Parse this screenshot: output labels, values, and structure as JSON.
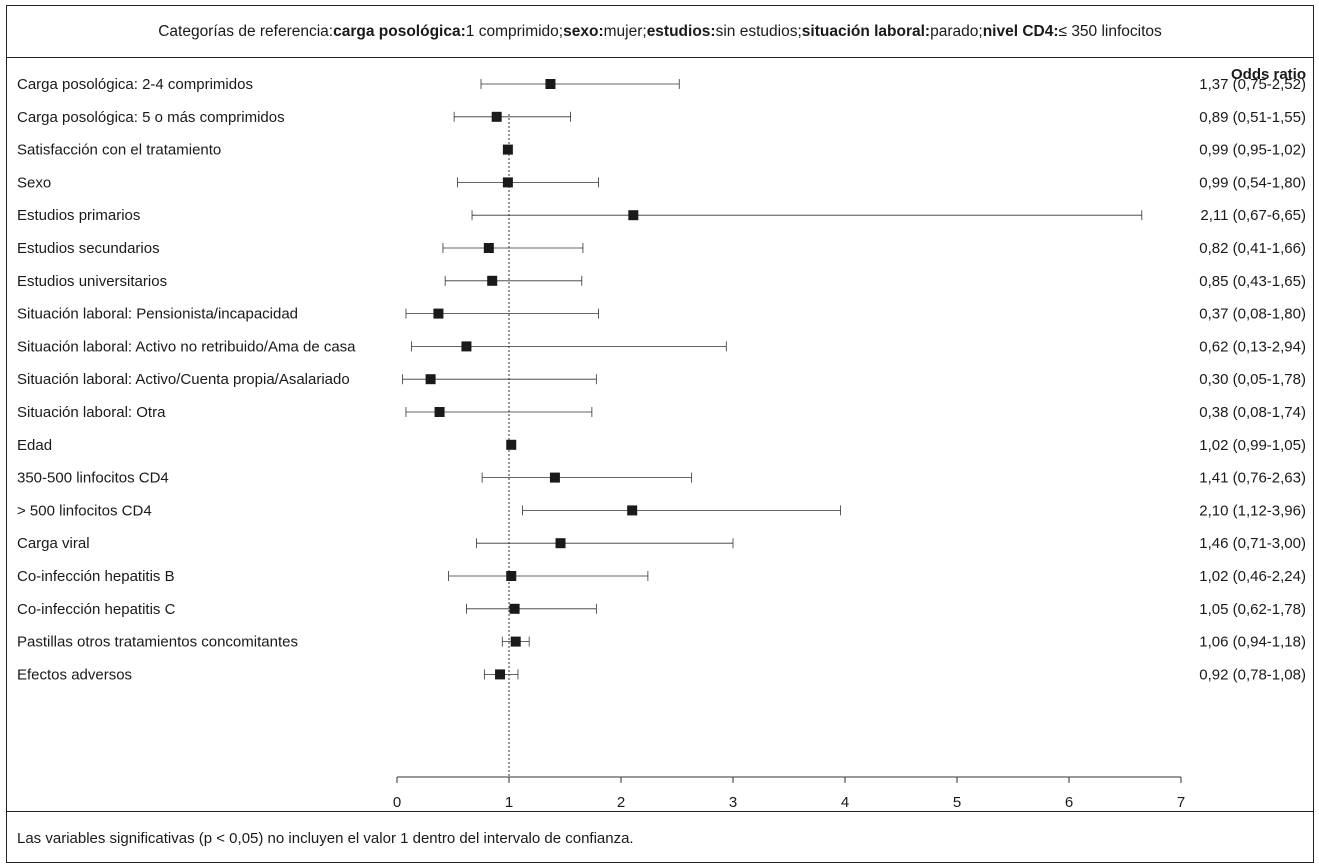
{
  "header": {
    "prefix": "Categorías de referencia:",
    "items": [
      {
        "key": "carga posológica:",
        "value": "1 comprimido;"
      },
      {
        "key": "sexo:",
        "value": "mujer;"
      },
      {
        "key": "estudios:",
        "value": "sin estudios;"
      },
      {
        "key": "situación laboral:",
        "value": "parado;"
      },
      {
        "key": "nivel CD4:",
        "value": "≤ 350 linfocitos"
      }
    ]
  },
  "footer": {
    "note": "Las variables significativas (p < 0,05) no incluyen el valor 1 dentro del intervalo de confianza."
  },
  "chart_data": {
    "type": "forest",
    "value_column_header": "Odds ratio",
    "reference_line": 1,
    "xlim": [
      0,
      7
    ],
    "xticks": [
      0,
      1,
      2,
      3,
      4,
      5,
      6,
      7
    ],
    "rows": [
      {
        "label": "Carga posológica: 2-4 comprimidos",
        "or": 1.37,
        "lo": 0.75,
        "hi": 2.52,
        "text": "1,37 (0,75-2,52)"
      },
      {
        "label": "Carga posológica: 5 o más comprimidos",
        "or": 0.89,
        "lo": 0.51,
        "hi": 1.55,
        "text": "0,89 (0,51-1,55)"
      },
      {
        "label": "Satisfacción con el tratamiento",
        "or": 0.99,
        "lo": 0.95,
        "hi": 1.02,
        "text": "0,99 (0,95-1,02)"
      },
      {
        "label": "Sexo",
        "or": 0.99,
        "lo": 0.54,
        "hi": 1.8,
        "text": "0,99 (0,54-1,80)"
      },
      {
        "label": "Estudios primarios",
        "or": 2.11,
        "lo": 0.67,
        "hi": 6.65,
        "text": "2,11 (0,67-6,65)"
      },
      {
        "label": "Estudios secundarios",
        "or": 0.82,
        "lo": 0.41,
        "hi": 1.66,
        "text": "0,82 (0,41-1,66)"
      },
      {
        "label": "Estudios universitarios",
        "or": 0.85,
        "lo": 0.43,
        "hi": 1.65,
        "text": "0,85 (0,43-1,65)"
      },
      {
        "label": "Situación laboral: Pensionista/incapacidad",
        "or": 0.37,
        "lo": 0.08,
        "hi": 1.8,
        "text": "0,37 (0,08-1,80)"
      },
      {
        "label": "Situación laboral: Activo no retribuido/Ama de casa",
        "or": 0.62,
        "lo": 0.13,
        "hi": 2.94,
        "text": "0,62 (0,13-2,94)"
      },
      {
        "label": "Situación laboral: Activo/Cuenta propia/Asalariado",
        "or": 0.3,
        "lo": 0.05,
        "hi": 1.78,
        "text": "0,30 (0,05-1,78)"
      },
      {
        "label": "Situación laboral: Otra",
        "or": 0.38,
        "lo": 0.08,
        "hi": 1.74,
        "text": "0,38 (0,08-1,74)"
      },
      {
        "label": "Edad",
        "or": 1.02,
        "lo": 0.99,
        "hi": 1.05,
        "text": "1,02 (0,99-1,05)"
      },
      {
        "label": "350-500 linfocitos CD4",
        "or": 1.41,
        "lo": 0.76,
        "hi": 2.63,
        "text": "1,41 (0,76-2,63)"
      },
      {
        "label": "> 500 linfocitos CD4",
        "or": 2.1,
        "lo": 1.12,
        "hi": 3.96,
        "text": "2,10 (1,12-3,96)"
      },
      {
        "label": "Carga viral",
        "or": 1.46,
        "lo": 0.71,
        "hi": 3.0,
        "text": "1,46 (0,71-3,00)"
      },
      {
        "label": "Co-infección hepatitis B",
        "or": 1.02,
        "lo": 0.46,
        "hi": 2.24,
        "text": "1,02 (0,46-2,24)"
      },
      {
        "label": "Co-infección hepatitis C",
        "or": 1.05,
        "lo": 0.62,
        "hi": 1.78,
        "text": "1,05 (0,62-1,78)"
      },
      {
        "label": "Pastillas otros tratamientos concomitantes",
        "or": 1.06,
        "lo": 0.94,
        "hi": 1.18,
        "text": "1,06 (0,94-1,18)"
      },
      {
        "label": "Efectos adversos",
        "or": 0.92,
        "lo": 0.78,
        "hi": 1.08,
        "text": "0,92 (0,78-1,08)"
      }
    ]
  }
}
